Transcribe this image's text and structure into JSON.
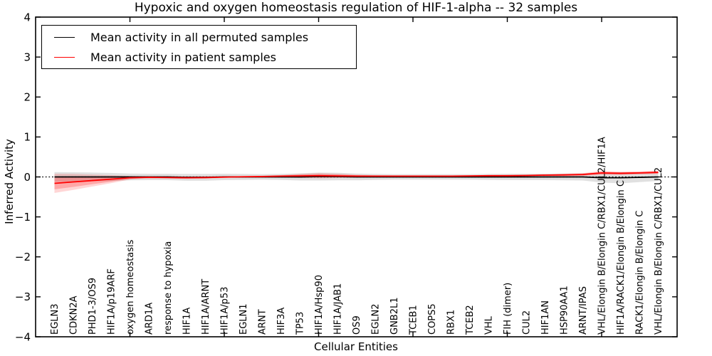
{
  "chart_data": {
    "type": "line",
    "title": "Hypoxic and oxygen homeostasis regulation of HIF-1-alpha -- 32 samples",
    "xlabel": "Cellular Entities",
    "ylabel": "Inferred Activity",
    "ylim": [
      -4,
      4
    ],
    "xlim": [
      0,
      34
    ],
    "yticks": [
      4,
      3,
      2,
      1,
      0,
      -1,
      -2,
      -3,
      -4
    ],
    "ytick_labels": [
      "4",
      "3",
      "2",
      "1",
      "0",
      "−1",
      "−2",
      "−3",
      "−4"
    ],
    "xticks_unlabeled": [
      5,
      10,
      15,
      20,
      25,
      30
    ],
    "grid": false,
    "zero_line": {
      "y": 0,
      "style": "dotted",
      "color": "#000000"
    },
    "legend": {
      "position": "upper-left",
      "entries": [
        {
          "label": "Mean activity in all permuted samples",
          "color": "#000000"
        },
        {
          "label": "Mean activity in patient samples",
          "color": "#ff0000"
        }
      ]
    },
    "categories": [
      "EGLN3",
      "CDKN2A",
      "PHD1-3/OS9",
      "HIF1A/p19ARF",
      "oxygen homeostasis",
      "ARD1A",
      "response to hypoxia",
      "HIF1A",
      "HIF1A/ARNT",
      "HIF1A/p53",
      "EGLN1",
      "ARNT",
      "HIF3A",
      "TP53",
      "HIF1A/Hsp90",
      "HIF1A/JAB1",
      "OS9",
      "EGLN2",
      "GNB2L1",
      "TCEB1",
      "COPS5",
      "RBX1",
      "TCEB2",
      "VHL",
      "FIH (dimer)",
      "CUL2",
      "HIF1AN",
      "HSP90AA1",
      "ARNT/IPAS",
      "VHL/Elongin B/Elongin C/RBX1/CUL2/HIF1A",
      "HIF1A/RACK1/Elongin B/Elongin C",
      "RACK1/Elongin B/Elongin C",
      "VHL/Elongin B/Elongin C/RBX1/CUL2"
    ],
    "series": [
      {
        "name": "Mean activity in all permuted samples",
        "color": "#000000",
        "band_color": "rgba(0,0,0,0.12)",
        "values": [
          0,
          0,
          0,
          0,
          0,
          0,
          0,
          -0.01,
          -0.01,
          0,
          0,
          0,
          0,
          0,
          0.01,
          0.01,
          0,
          0,
          0,
          0,
          0,
          0,
          0,
          0,
          0,
          0,
          0,
          0,
          0,
          -0.02,
          -0.02,
          -0.01,
          0
        ],
        "band": [
          0.12,
          0.115,
          0.11,
          0.1,
          0.085,
          0.08,
          0.08,
          0.085,
          0.085,
          0.08,
          0.075,
          0.07,
          0.075,
          0.09,
          0.1,
          0.095,
          0.085,
          0.075,
          0.07,
          0.07,
          0.07,
          0.07,
          0.07,
          0.075,
          0.08,
          0.08,
          0.08,
          0.085,
          0.09,
          0.12,
          0.14,
          0.12,
          0.1
        ]
      },
      {
        "name": "Mean activity in patient samples",
        "color": "#ff0000",
        "band_color": "rgba(255,0,0,0.16)",
        "band_inner_color": "rgba(255,0,0,0.22)",
        "band_inner_scale": 0.62,
        "values": [
          -0.16,
          -0.125,
          -0.09,
          -0.055,
          -0.02,
          -0.01,
          -0.015,
          -0.02,
          -0.015,
          -0.005,
          0.005,
          0.01,
          0.02,
          0.025,
          0.03,
          0.025,
          0.02,
          0.02,
          0.02,
          0.02,
          0.02,
          0.02,
          0.025,
          0.03,
          0.03,
          0.035,
          0.045,
          0.05,
          0.06,
          0.1,
          0.09,
          0.1,
          0.115
        ],
        "band": [
          0.24,
          0.2,
          0.15,
          0.1,
          0.045,
          0.02,
          0.02,
          0.03,
          0.03,
          0.02,
          0.015,
          0.015,
          0.025,
          0.05,
          0.065,
          0.055,
          0.035,
          0.02,
          0.015,
          0.015,
          0.015,
          0.015,
          0.015,
          0.015,
          0.02,
          0.02,
          0.025,
          0.03,
          0.035,
          0.05,
          0.04,
          0.04,
          0.045
        ]
      }
    ]
  },
  "colors": {
    "background": "#ffffff",
    "axis": "#000000"
  }
}
